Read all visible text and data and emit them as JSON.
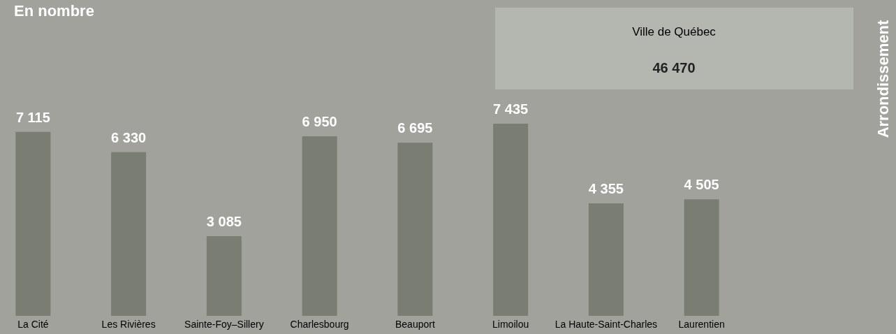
{
  "chart_data": {
    "type": "bar",
    "title": "En nombre",
    "categories": [
      "La Cité",
      "Les Rivières",
      "Sainte-Foy–Sillery",
      "Charlesbourg",
      "Beauport",
      "Limoilou",
      "La Haute-Saint-Charles",
      "Laurentien"
    ],
    "values": [
      7115,
      6330,
      3085,
      6950,
      6695,
      7435,
      4355,
      4505
    ],
    "value_labels": [
      "7 115",
      "6 330",
      "3 085",
      "6 950",
      "6 695",
      "7 435",
      "4 355",
      "4 505"
    ],
    "color": "#7a7d72",
    "annotations": [
      "Ville de Québec",
      "46 470",
      "Arrondissement"
    ]
  }
}
